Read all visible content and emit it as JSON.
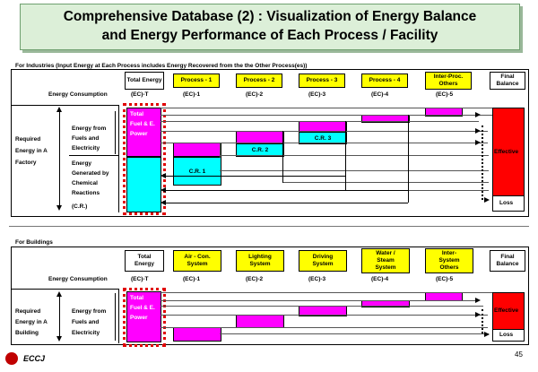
{
  "title": {
    "line1": "Comprehensive Database (2) : Visualization of Energy Balance",
    "line2": "and Energy Performance of Each Process / Facility"
  },
  "industry": {
    "section_label": "For Industries (Input Energy at Each Process includes Energy Recovered from the the Other Process(es))",
    "total_energy": "Total Energy",
    "processes": [
      "Process - 1",
      "Process - 2",
      "Process - 3",
      "Process - 4",
      "Inter-Proc. Others"
    ],
    "final_balance": "Final Balance",
    "consumption_label": "Energy Consumption",
    "ec_labels": [
      "(EC)-T",
      "(EC)-1",
      "(EC)-2",
      "(EC)-3",
      "(EC)-4",
      "(EC)-5"
    ],
    "required_energy": "Required Energy in A Factory",
    "fuels_label": "Energy from Fuels and Electricity",
    "chem_label": "Energy Generated by Chemical Reactions",
    "cr_short": "(C.R.)",
    "total_bar_label": "Total Fuel & E. Power",
    "cr_bars": [
      "C.R. 1",
      "C.R. 2",
      "C.R. 3"
    ],
    "effective": "Effective",
    "loss": "Loss"
  },
  "building": {
    "section_label": "For Buildings",
    "total_energy": "Total Energy",
    "systems": [
      "Air - Con. System",
      "Lighting System",
      "Driving System",
      "Water / Steam System",
      "Inter- System Others"
    ],
    "final_balance": "Final Balance",
    "consumption_label": "Energy Consumption",
    "ec_labels": [
      "(EC)-T",
      "(EC)-1",
      "(EC)-2",
      "(EC)-3",
      "(EC)-4",
      "(EC)-5"
    ],
    "required_energy": "Required Energy in A Building",
    "fuels_label": "Energy from Fuels and Electricity",
    "total_bar_label": "Total Fuel & E. Power",
    "effective": "Effective",
    "loss": "Loss"
  },
  "footer": {
    "logo_text": "ECCJ",
    "page_number": "45"
  },
  "colors": {
    "process_header": "#ffff00",
    "fuel_bar": "#ff00ff",
    "cr_bar": "#00ffff",
    "effective": "#ff0000",
    "dashed_outline": "#e00000"
  }
}
